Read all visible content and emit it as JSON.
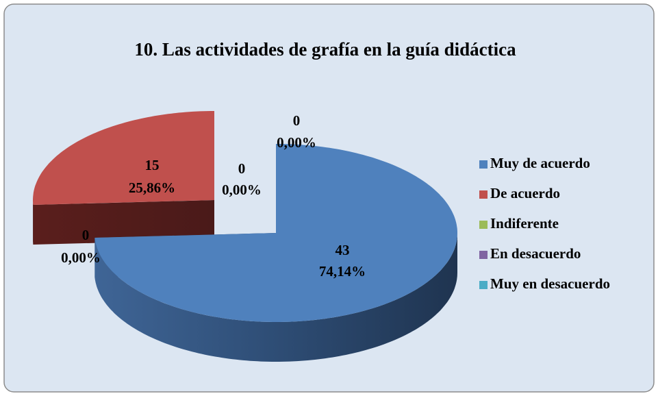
{
  "chart_data": {
    "type": "pie3d",
    "title": "10. Las actividades de grafía en la guía didáctica",
    "categories": [
      "Muy de acuerdo",
      "De acuerdo",
      "Indiferente",
      "En desacuerdo",
      "Muy en desacuerdo"
    ],
    "values": [
      43,
      15,
      0,
      0,
      0
    ],
    "percents": [
      74.14,
      25.86,
      0,
      0,
      0
    ],
    "percent_labels": [
      "74,14%",
      "25,86%",
      "0,00%",
      "0,00%",
      "0,00%"
    ],
    "colors": [
      "#4f81bd",
      "#c0504d",
      "#9bbb59",
      "#8064a2",
      "#4bacc6"
    ],
    "legend": "right"
  }
}
